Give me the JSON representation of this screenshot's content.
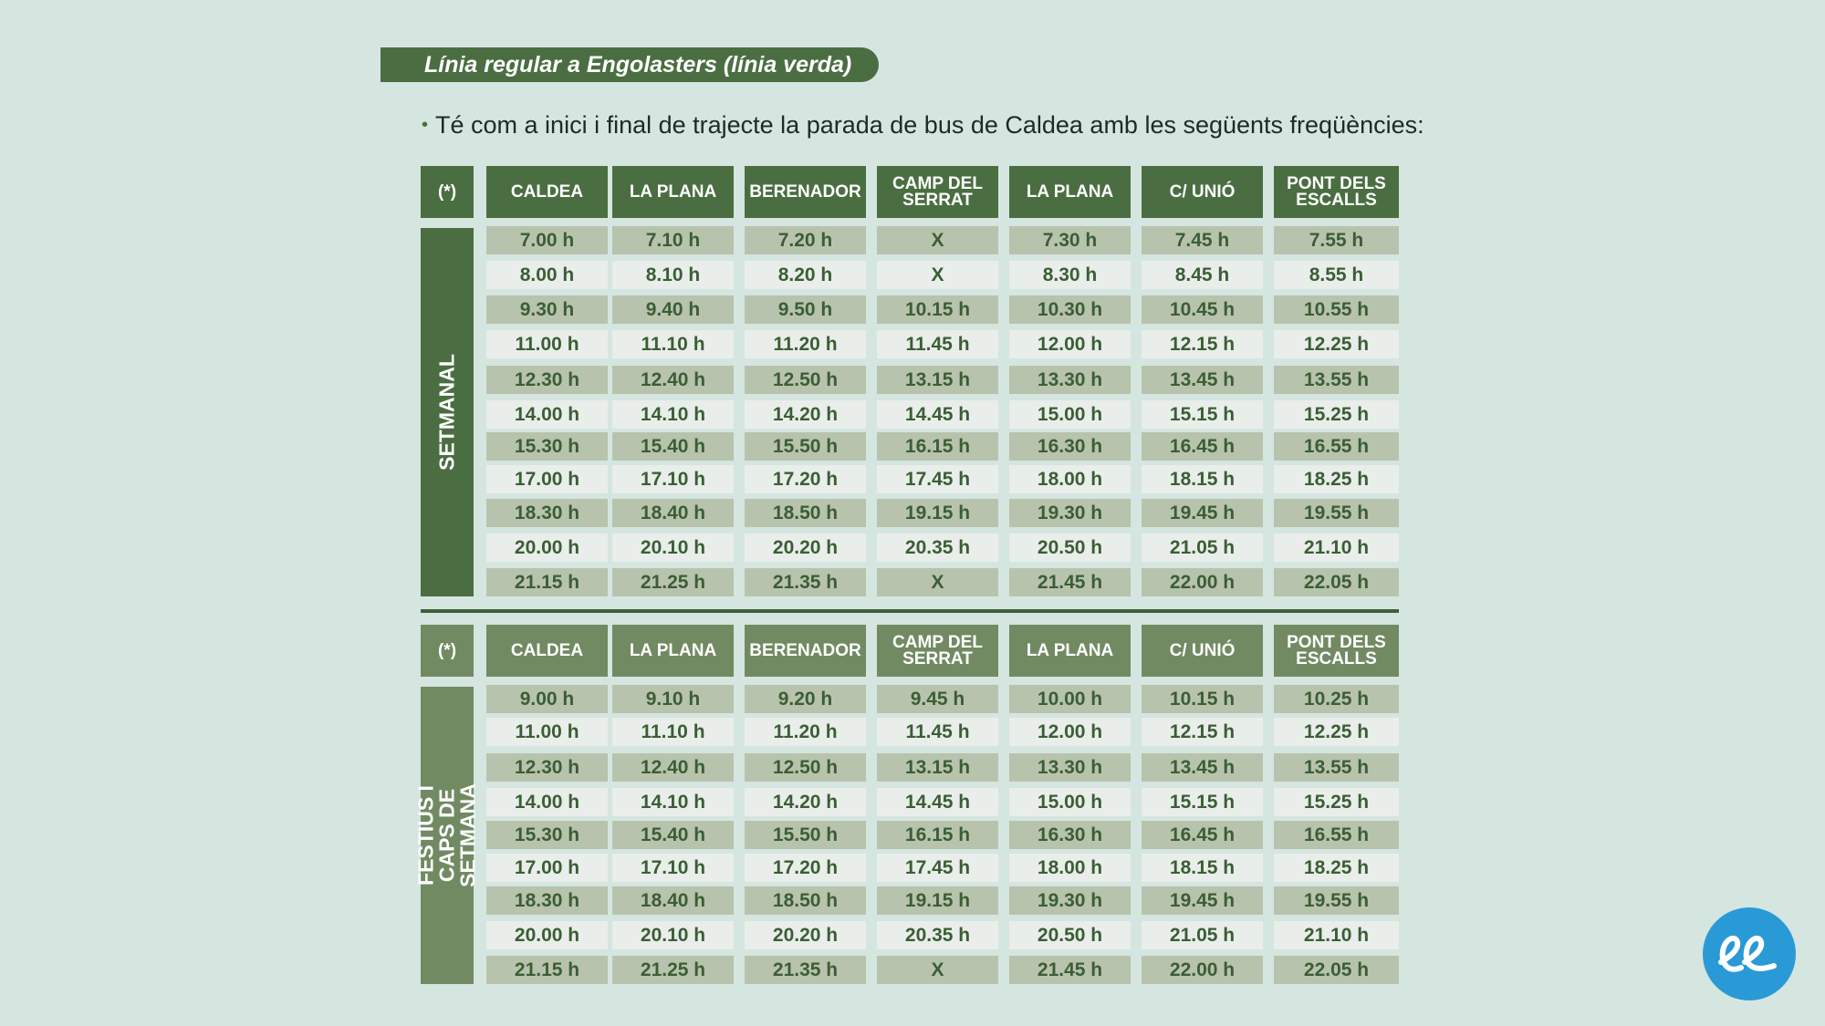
{
  "title": "Línia regular a Engolasters (línia verda)",
  "intro": "Té com a inici i final de trajecte la parada de bus de Caldea amb les següents freqüències:",
  "bullet": "•",
  "header": [
    "(*)",
    "CALDEA",
    "LA PLANA",
    "BERENADOR",
    "CAMP DEL\nSERRAT",
    "LA PLANA",
    "C/ UNIÓ",
    "PONT DELS\nESCALLS"
  ],
  "weekday": {
    "label": "SETMANAL",
    "rows": [
      [
        "7.00 h",
        "7.10 h",
        "7.20 h",
        "X",
        "7.30 h",
        "7.45 h",
        "7.55 h"
      ],
      [
        "8.00 h",
        "8.10 h",
        "8.20 h",
        "X",
        "8.30 h",
        "8.45 h",
        "8.55 h"
      ],
      [
        "9.30 h",
        "9.40 h",
        "9.50 h",
        "10.15 h",
        "10.30 h",
        "10.45 h",
        "10.55 h"
      ],
      [
        "11.00 h",
        "11.10 h",
        "11.20 h",
        "11.45 h",
        "12.00 h",
        "12.15 h",
        "12.25 h"
      ],
      [
        "12.30 h",
        "12.40 h",
        "12.50 h",
        "13.15 h",
        "13.30 h",
        "13.45 h",
        "13.55 h"
      ],
      [
        "14.00 h",
        "14.10 h",
        "14.20 h",
        "14.45 h",
        "15.00 h",
        "15.15 h",
        "15.25 h"
      ],
      [
        "15.30 h",
        "15.40 h",
        "15.50 h",
        "16.15 h",
        "16.30 h",
        "16.45 h",
        "16.55 h"
      ],
      [
        "17.00 h",
        "17.10 h",
        "17.20 h",
        "17.45 h",
        "18.00 h",
        "18.15 h",
        "18.25 h"
      ],
      [
        "18.30 h",
        "18.40 h",
        "18.50 h",
        "19.15 h",
        "19.30 h",
        "19.45 h",
        "19.55 h"
      ],
      [
        "20.00 h",
        "20.10 h",
        "20.20 h",
        "20.35 h",
        "20.50 h",
        "21.05 h",
        "21.10 h"
      ],
      [
        "21.15 h",
        "21.25 h",
        "21.35 h",
        "X",
        "21.45 h",
        "22.00 h",
        "22.05 h"
      ]
    ]
  },
  "weekend": {
    "label": "FESTIUS I\nCAPS DE SETMANA",
    "rows": [
      [
        "9.00 h",
        "9.10 h",
        "9.20 h",
        "9.45 h",
        "10.00 h",
        "10.15 h",
        "10.25 h"
      ],
      [
        "11.00 h",
        "11.10 h",
        "11.20 h",
        "11.45 h",
        "12.00 h",
        "12.15 h",
        "12.25 h"
      ],
      [
        "12.30 h",
        "12.40 h",
        "12.50 h",
        "13.15 h",
        "13.30 h",
        "13.45 h",
        "13.55 h"
      ],
      [
        "14.00 h",
        "14.10 h",
        "14.20 h",
        "14.45 h",
        "15.00 h",
        "15.15 h",
        "15.25 h"
      ],
      [
        "15.30 h",
        "15.40 h",
        "15.50 h",
        "16.15 h",
        "16.30 h",
        "16.45 h",
        "16.55 h"
      ],
      [
        "17.00 h",
        "17.10 h",
        "17.20 h",
        "17.45 h",
        "18.00 h",
        "18.15 h",
        "18.25 h"
      ],
      [
        "18.30 h",
        "18.40 h",
        "18.50 h",
        "19.15 h",
        "19.30 h",
        "19.45 h",
        "19.55 h"
      ],
      [
        "20.00 h",
        "20.10 h",
        "20.20 h",
        "20.35 h",
        "20.50 h",
        "21.05 h",
        "21.10 h"
      ],
      [
        "21.15 h",
        "21.25 h",
        "21.35 h",
        "X",
        "21.45 h",
        "22.00 h",
        "22.05 h"
      ]
    ]
  },
  "logo_icon": "ee-logo-icon",
  "colors": {
    "background": "#d5e5e0",
    "dark_green": "#4a6e41",
    "muted_green": "#728a62",
    "dark_row": "#b8c3ad",
    "light_row": "#e9eeea",
    "text_green": "#3b5e35",
    "logo_blue": "#2a9ad6"
  }
}
